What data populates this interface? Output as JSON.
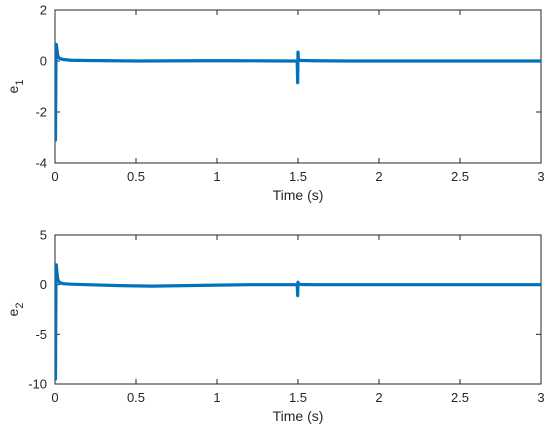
{
  "colors": {
    "series": "#0072BD",
    "axis": "#262626"
  },
  "chart_data": [
    {
      "type": "line",
      "xlabel": "Time (s)",
      "ylabel_base": "e",
      "ylabel_sub": "1",
      "xlim": [
        0,
        3
      ],
      "ylim": [
        -4,
        2
      ],
      "xticks": [
        0,
        0.5,
        1,
        1.5,
        2,
        2.5,
        3
      ],
      "xtick_labels": [
        "0",
        "0.5",
        "1",
        "1.5",
        "2",
        "2.5",
        "3"
      ],
      "yticks": [
        -4,
        -2,
        0,
        2
      ],
      "ytick_labels": [
        "-4",
        "-2",
        "0",
        "2"
      ],
      "grid": false,
      "series": [
        {
          "x": [
            0,
            0.003,
            0.006,
            0.008,
            0.012,
            0.016,
            0.02,
            0.03,
            0.05,
            0.1,
            0.2,
            0.35,
            0.5,
            0.7,
            0.9,
            1.1,
            1.3,
            1.45,
            1.495,
            1.498,
            1.5,
            1.502,
            1.505,
            1.51,
            1.53,
            1.6,
            1.8,
            2.0,
            2.5,
            3.0
          ],
          "y": [
            0,
            -3.1,
            0.1,
            0.65,
            0.45,
            0.25,
            0.15,
            0.1,
            0.06,
            0.03,
            0.02,
            0.01,
            0,
            0.005,
            0.01,
            0.01,
            0.005,
            0.0,
            0.0,
            -0.85,
            0.35,
            0.1,
            0.05,
            0.03,
            0.02,
            0.01,
            0.0,
            0.0,
            0.0,
            0.0
          ]
        }
      ]
    },
    {
      "type": "line",
      "xlabel": "Time (s)",
      "ylabel_base": "e",
      "ylabel_sub": "2",
      "xlim": [
        0,
        3
      ],
      "ylim": [
        -10,
        5
      ],
      "xticks": [
        0,
        0.5,
        1,
        1.5,
        2,
        2.5,
        3
      ],
      "xtick_labels": [
        "0",
        "0.5",
        "1",
        "1.5",
        "2",
        "2.5",
        "3"
      ],
      "yticks": [
        -10,
        -5,
        0,
        5
      ],
      "ytick_labels": [
        "-10",
        "-5",
        "0",
        "5"
      ],
      "grid": false,
      "series": [
        {
          "x": [
            0,
            0.003,
            0.006,
            0.008,
            0.012,
            0.016,
            0.02,
            0.03,
            0.05,
            0.1,
            0.2,
            0.4,
            0.6,
            0.8,
            1.0,
            1.2,
            1.4,
            1.495,
            1.498,
            1.5,
            1.502,
            1.505,
            1.52,
            1.6,
            2.0,
            2.5,
            3.0
          ],
          "y": [
            0,
            -9.5,
            0.2,
            2.0,
            1.2,
            0.7,
            0.4,
            0.2,
            0.1,
            0.05,
            0.0,
            -0.1,
            -0.15,
            -0.1,
            -0.05,
            0.0,
            0.0,
            0.0,
            -1.1,
            0.25,
            0.1,
            0.05,
            0.02,
            0.0,
            0.0,
            0.0,
            0.0
          ]
        }
      ]
    }
  ]
}
